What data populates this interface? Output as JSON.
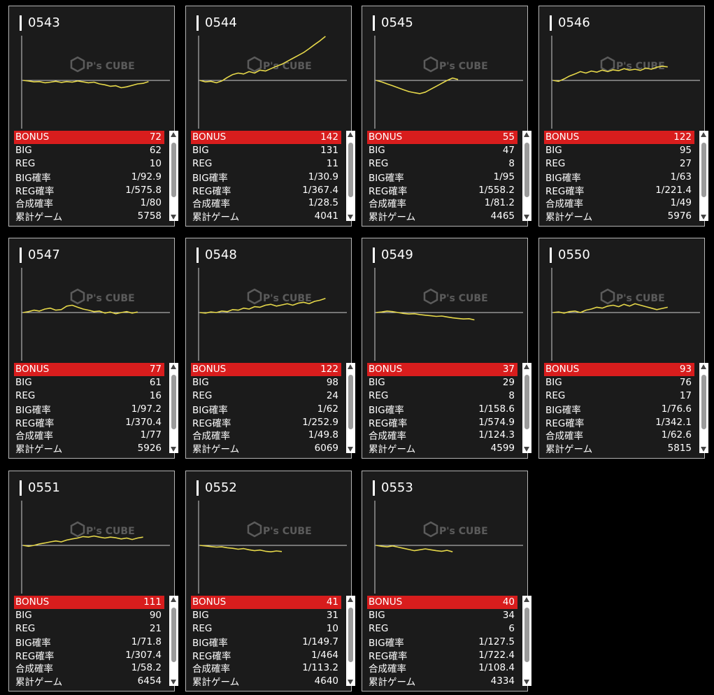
{
  "colors": {
    "line": "#e6d84a",
    "header": "#d81d1d",
    "axis": "#cfcfcf"
  },
  "watermark": {
    "logo": "P's CUBE",
    "icon": "cube-icon"
  },
  "machines": [
    {
      "id": "0543",
      "rows": [
        [
          "BONUS",
          "72"
        ],
        [
          "BIG",
          "62"
        ],
        [
          "REG",
          "10"
        ],
        [
          "BIG確率",
          "1/92.9"
        ],
        [
          "REG確率",
          "1/575.8"
        ],
        [
          "合成確率",
          "1/80"
        ],
        [
          "累計ゲーム",
          "5758"
        ]
      ],
      "series": [
        0,
        -2,
        -5,
        -4,
        -8,
        -6,
        -3,
        -7,
        -4,
        -6,
        -2,
        -5,
        -8,
        -6,
        -12,
        -15,
        -20,
        -18,
        -25,
        -22,
        -17,
        -12,
        -10,
        -4
      ]
    },
    {
      "id": "0544",
      "rows": [
        [
          "BONUS",
          "142"
        ],
        [
          "BIG",
          "131"
        ],
        [
          "REG",
          "11"
        ],
        [
          "BIG確率",
          "1/30.9"
        ],
        [
          "REG確率",
          "1/367.4"
        ],
        [
          "合成確率",
          "1/28.5"
        ],
        [
          "累計ゲーム",
          "4041"
        ]
      ],
      "series": [
        0,
        -5,
        -3,
        -8,
        -2,
        10,
        20,
        25,
        22,
        30,
        25,
        35,
        32,
        40,
        48,
        55,
        65,
        75,
        85,
        95,
        108,
        122,
        135,
        150
      ]
    },
    {
      "id": "0545",
      "rows": [
        [
          "BONUS",
          "55"
        ],
        [
          "BIG",
          "47"
        ],
        [
          "REG",
          "8"
        ],
        [
          "BIG確率",
          "1/95"
        ],
        [
          "REG確率",
          "1/558.2"
        ],
        [
          "合成確率",
          "1/81.2"
        ],
        [
          "累計ゲーム",
          "4465"
        ]
      ],
      "series": [
        0,
        -5,
        -12,
        -18,
        -25,
        -32,
        -38,
        -42,
        -45,
        -40,
        -30,
        -20,
        -10,
        0,
        8,
        3
      ]
    },
    {
      "id": "0546",
      "rows": [
        [
          "BONUS",
          "122"
        ],
        [
          "BIG",
          "95"
        ],
        [
          "REG",
          "27"
        ],
        [
          "BIG確率",
          "1/63"
        ],
        [
          "REG確率",
          "1/221.4"
        ],
        [
          "合成確率",
          "1/49"
        ],
        [
          "累計ゲーム",
          "5976"
        ]
      ],
      "series": [
        0,
        -3,
        5,
        15,
        22,
        30,
        25,
        32,
        28,
        35,
        30,
        36,
        33,
        40,
        35,
        38,
        34,
        42,
        38,
        45,
        48,
        46
      ]
    },
    {
      "id": "0547",
      "rows": [
        [
          "BONUS",
          "77"
        ],
        [
          "BIG",
          "61"
        ],
        [
          "REG",
          "16"
        ],
        [
          "BIG確率",
          "1/97.2"
        ],
        [
          "REG確率",
          "1/370.4"
        ],
        [
          "合成確率",
          "1/77"
        ],
        [
          "累計ゲーム",
          "5926"
        ]
      ],
      "series": [
        0,
        3,
        8,
        5,
        12,
        15,
        8,
        10,
        22,
        25,
        18,
        12,
        8,
        3,
        5,
        -2,
        2,
        -4,
        0,
        3,
        -2,
        2
      ]
    },
    {
      "id": "0548",
      "rows": [
        [
          "BONUS",
          "122"
        ],
        [
          "BIG",
          "98"
        ],
        [
          "REG",
          "24"
        ],
        [
          "BIG確率",
          "1/62"
        ],
        [
          "REG確率",
          "1/252.9"
        ],
        [
          "合成確率",
          "1/49.8"
        ],
        [
          "累計ゲーム",
          "6069"
        ]
      ],
      "series": [
        0,
        -2,
        2,
        0,
        5,
        3,
        10,
        8,
        15,
        12,
        20,
        18,
        25,
        28,
        22,
        26,
        30,
        25,
        32,
        35,
        30,
        38,
        42,
        48
      ]
    },
    {
      "id": "0549",
      "rows": [
        [
          "BONUS",
          "37"
        ],
        [
          "BIG",
          "29"
        ],
        [
          "REG",
          "8"
        ],
        [
          "BIG確率",
          "1/158.6"
        ],
        [
          "REG確率",
          "1/574.9"
        ],
        [
          "合成確率",
          "1/124.3"
        ],
        [
          "累計ゲーム",
          "4599"
        ]
      ],
      "series": [
        0,
        2,
        5,
        3,
        0,
        -3,
        -5,
        -4,
        -7,
        -9,
        -11,
        -13,
        -12,
        -15,
        -18,
        -20,
        -22,
        -21,
        -25
      ]
    },
    {
      "id": "0550",
      "rows": [
        [
          "BONUS",
          "93"
        ],
        [
          "BIG",
          "76"
        ],
        [
          "REG",
          "17"
        ],
        [
          "BIG確率",
          "1/76.6"
        ],
        [
          "REG確率",
          "1/342.1"
        ],
        [
          "合成確率",
          "1/62.6"
        ],
        [
          "累計ゲーム",
          "5815"
        ]
      ],
      "series": [
        0,
        2,
        -2,
        3,
        5,
        0,
        8,
        12,
        18,
        15,
        22,
        25,
        20,
        28,
        22,
        30,
        25,
        20,
        15,
        10,
        14,
        18
      ]
    },
    {
      "id": "0551",
      "rows": [
        [
          "BONUS",
          "111"
        ],
        [
          "BIG",
          "90"
        ],
        [
          "REG",
          "21"
        ],
        [
          "BIG確率",
          "1/71.8"
        ],
        [
          "REG確率",
          "1/307.4"
        ],
        [
          "合成確率",
          "1/58.2"
        ],
        [
          "累計ゲーム",
          "6454"
        ]
      ],
      "series": [
        0,
        -3,
        0,
        5,
        8,
        12,
        15,
        12,
        18,
        22,
        25,
        30,
        28,
        32,
        28,
        25,
        28,
        26,
        22,
        25,
        20,
        25,
        28
      ]
    },
    {
      "id": "0552",
      "rows": [
        [
          "BONUS",
          "41"
        ],
        [
          "BIG",
          "31"
        ],
        [
          "REG",
          "10"
        ],
        [
          "BIG確率",
          "1/149.7"
        ],
        [
          "REG確率",
          "1/464"
        ],
        [
          "合成確率",
          "1/113.2"
        ],
        [
          "累計ゲーム",
          "4640"
        ]
      ],
      "series": [
        0,
        -2,
        -4,
        -6,
        -5,
        -8,
        -10,
        -13,
        -11,
        -15,
        -18,
        -16,
        -20,
        -22,
        -19,
        -21
      ]
    },
    {
      "id": "0553",
      "rows": [
        [
          "BONUS",
          "40"
        ],
        [
          "BIG",
          "34"
        ],
        [
          "REG",
          "6"
        ],
        [
          "BIG確率",
          "1/127.5"
        ],
        [
          "REG確率",
          "1/722.4"
        ],
        [
          "合成確率",
          "1/108.4"
        ],
        [
          "累計ゲーム",
          "4334"
        ]
      ],
      "series": [
        0,
        -3,
        -5,
        -2,
        -6,
        -10,
        -14,
        -18,
        -15,
        -12,
        -15,
        -18,
        -20,
        -17,
        -22
      ]
    }
  ]
}
